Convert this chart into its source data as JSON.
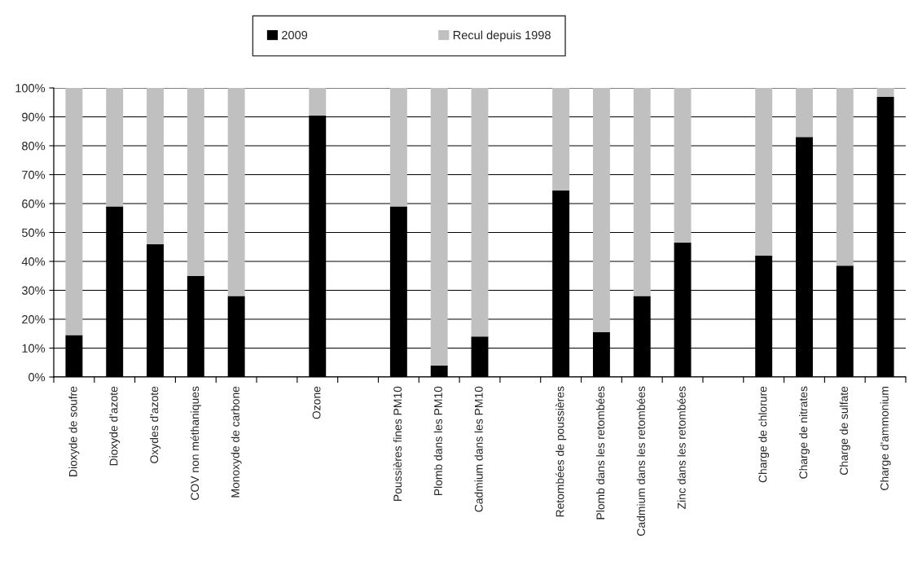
{
  "chart_data": {
    "type": "bar",
    "stacked": true,
    "categories": [
      "Dioxyde de soufre",
      "Dioxyde d'azote",
      "Oxydes d'azote",
      "COV non méthaniques",
      "Monoxyde de carbone",
      null,
      "Ozone",
      null,
      "Poussières fines PM10",
      "Plomb dans les PM10",
      "Cadmium dans les PM10",
      null,
      "Retombées de poussières",
      "Plomb dans les retombées",
      "Cadmium dans les retombées",
      "Zinc dans les retombées",
      null,
      "Charge de chlorure",
      "Charge de nitrates",
      "Charge de sulfate",
      "Charge d'ammonium"
    ],
    "series": [
      {
        "name": "2009",
        "color": "#000000",
        "values": [
          14.5,
          59,
          46,
          35,
          28,
          null,
          90.5,
          null,
          59,
          4,
          14,
          null,
          64.5,
          15.5,
          28,
          46.5,
          null,
          42,
          83,
          38.5,
          97
        ]
      },
      {
        "name": "Recul depuis 1998",
        "color": "#c0c0c0",
        "values": [
          85.5,
          41,
          54,
          65,
          72,
          null,
          9.5,
          null,
          41,
          96,
          86,
          null,
          35.5,
          84.5,
          72,
          53.5,
          null,
          58,
          17,
          61.5,
          3
        ]
      }
    ],
    "ylim": [
      0,
      100
    ],
    "yticks": [
      {
        "value": 0,
        "label": "0%"
      },
      {
        "value": 10,
        "label": "10%"
      },
      {
        "value": 20,
        "label": "20%"
      },
      {
        "value": 30,
        "label": "30%"
      },
      {
        "value": 40,
        "label": "40%"
      },
      {
        "value": 50,
        "label": "50%"
      },
      {
        "value": 60,
        "label": "60%"
      },
      {
        "value": 70,
        "label": "70%"
      },
      {
        "value": 80,
        "label": "80%"
      },
      {
        "value": 90,
        "label": "90%"
      },
      {
        "value": 100,
        "label": "100%"
      }
    ],
    "grid": "y",
    "legend": "top"
  }
}
